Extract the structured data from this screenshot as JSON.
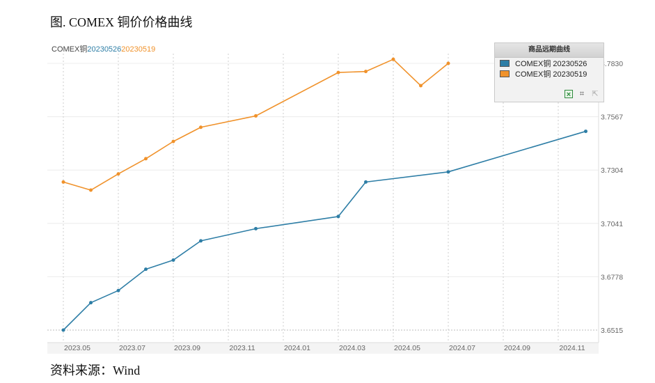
{
  "figure": {
    "title": "图. COMEX 铜价价格曲线",
    "source": "资料来源：Wind"
  },
  "header": {
    "code": "COMEX铜",
    "series1_label": "20230526",
    "series2_label": "20230519"
  },
  "legend": {
    "title": "商品远期曲线",
    "items": [
      "COMEX铜 20230526",
      "COMEX铜 20230519"
    ],
    "tools": [
      "excel-icon",
      "crop-icon",
      "export-icon"
    ]
  },
  "colors": {
    "series1": "#2e7ea6",
    "series2": "#f0922b",
    "grid": "#cccccc",
    "axis_text": "#666666"
  },
  "chart_data": {
    "type": "line",
    "title": "",
    "xlabel": "",
    "ylabel": "",
    "x_ticks": [
      "2023.05",
      "2023.07",
      "2023.09",
      "2023.11",
      "2024.01",
      "2024.03",
      "2024.05",
      "2024.07",
      "2024.09",
      "2024.11"
    ],
    "y_ticks": [
      "3.6515",
      "3.6778",
      "3.7041",
      "3.7304",
      "3.7567",
      "3.7830"
    ],
    "ylim": [
      3.6515,
      3.783
    ],
    "y_axis_position": "right",
    "grid": true,
    "legend_position": "top-right",
    "series": [
      {
        "name": "COMEX铜 20230526",
        "x": [
          "2023-05-15",
          "2023-06-15",
          "2023-07-15",
          "2023-08-15",
          "2023-09-15",
          "2023-10-15",
          "2023-12-15",
          "2024-03-15",
          "2024-04-15",
          "2024-07-15",
          "2024-12-15"
        ],
        "values": [
          3.6515,
          3.665,
          3.671,
          3.6815,
          3.686,
          3.6955,
          3.7015,
          3.7075,
          3.7245,
          3.7295,
          3.7495
        ]
      },
      {
        "name": "COMEX铜 20230519",
        "x": [
          "2023-05-15",
          "2023-06-15",
          "2023-07-15",
          "2023-08-15",
          "2023-09-15",
          "2023-10-15",
          "2023-12-15",
          "2024-03-15",
          "2024-04-15",
          "2024-05-15",
          "2024-06-15",
          "2024-07-15"
        ],
        "values": [
          3.7245,
          3.7205,
          3.7285,
          3.736,
          3.7445,
          3.7515,
          3.7571,
          3.7785,
          3.779,
          3.785,
          3.772,
          3.783
        ]
      }
    ]
  }
}
